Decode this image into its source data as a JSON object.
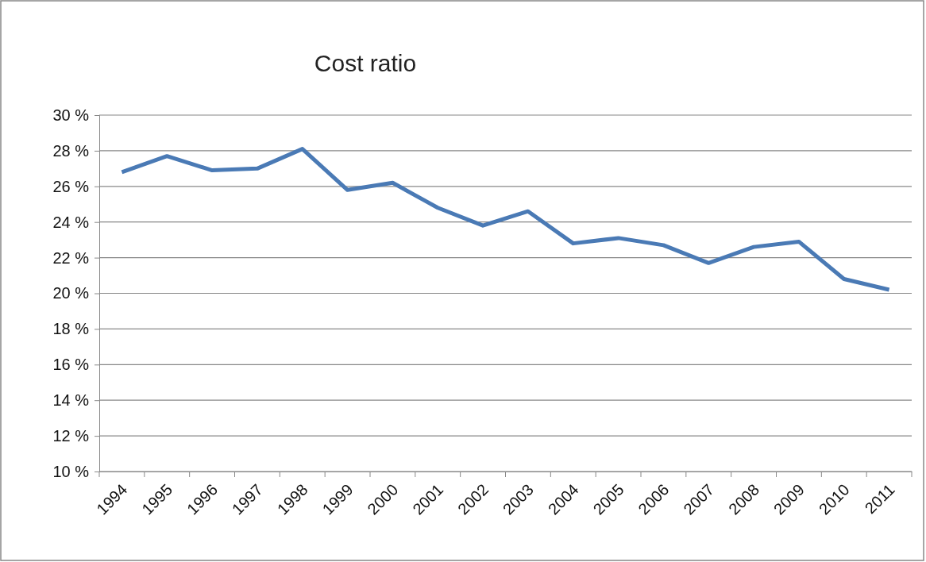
{
  "chart_data": {
    "type": "line",
    "title": "Cost ratio",
    "categories": [
      "1994",
      "1995",
      "1996",
      "1997",
      "1998",
      "1999",
      "2000",
      "2001",
      "2002",
      "2003",
      "2004",
      "2005",
      "2006",
      "2007",
      "2008",
      "2009",
      "2010",
      "2011"
    ],
    "series": [
      {
        "color": "#4a7ab5",
        "values": [
          26.8,
          27.7,
          26.9,
          27.0,
          28.1,
          25.8,
          26.2,
          24.8,
          23.8,
          24.6,
          22.8,
          23.1,
          22.7,
          21.7,
          22.6,
          22.9,
          20.8,
          20.2
        ]
      }
    ],
    "ylim": [
      10,
      30
    ],
    "yticks": [
      {
        "value": 10,
        "label": "10 %"
      },
      {
        "value": 12,
        "label": "12 %"
      },
      {
        "value": 14,
        "label": "14 %"
      },
      {
        "value": 16,
        "label": "16 %"
      },
      {
        "value": 18,
        "label": "18 %"
      },
      {
        "value": 20,
        "label": "20 %"
      },
      {
        "value": 22,
        "label": "22 %"
      },
      {
        "value": 24,
        "label": "24 %"
      },
      {
        "value": 26,
        "label": "26 %"
      },
      {
        "value": 28,
        "label": "28 %"
      },
      {
        "value": 30,
        "label": "30 %"
      }
    ],
    "grid": "y",
    "marker": "none",
    "line_style": "solid"
  }
}
